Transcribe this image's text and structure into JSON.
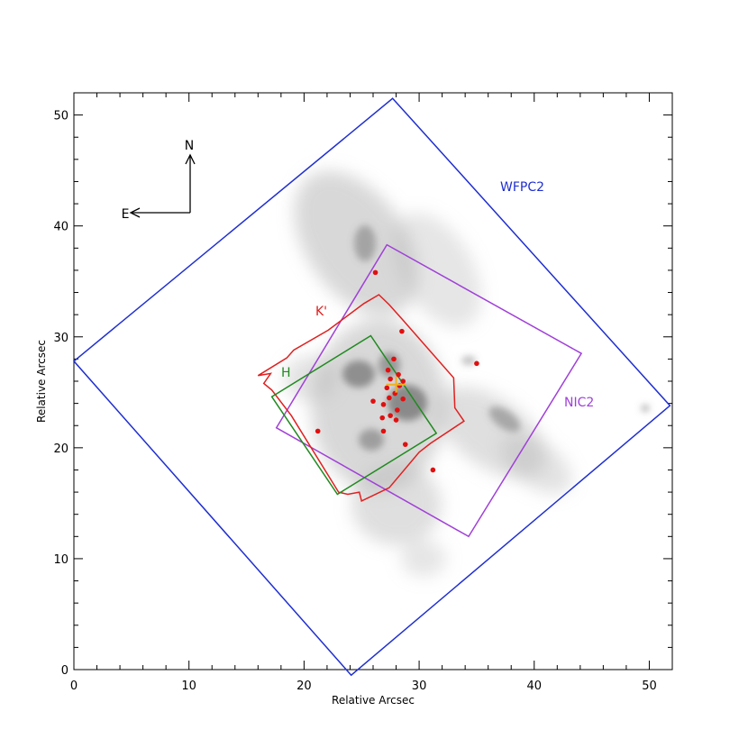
{
  "chart_data": {
    "type": "scatter",
    "xlabel": "Relative Arcsec",
    "ylabel": "Relative Arcsec",
    "xlim": [
      0,
      52
    ],
    "ylim": [
      0,
      52
    ],
    "xticks": [
      0,
      10,
      20,
      30,
      40,
      50
    ],
    "yticks": [
      0,
      10,
      20,
      30,
      40,
      50
    ],
    "compass": {
      "north": "N",
      "east": "E"
    },
    "footprints": [
      {
        "name": "WFPC2",
        "color": "#1f2fd0",
        "vertices": [
          [
            27.7,
            51.5
          ],
          [
            51.8,
            23.8
          ],
          [
            24.1,
            -0.5
          ],
          [
            0,
            27.8
          ]
        ]
      },
      {
        "name": "NIC2",
        "color": "#a040d8",
        "vertices": [
          [
            27.2,
            38.3
          ],
          [
            44.1,
            28.5
          ],
          [
            34.3,
            12.0
          ],
          [
            17.6,
            21.8
          ]
        ]
      },
      {
        "name": "K'",
        "color": "#e02020",
        "vertices": [
          [
            26.5,
            33.8
          ],
          [
            27.4,
            32.9
          ],
          [
            28.6,
            31.5
          ],
          [
            33.0,
            26.3
          ],
          [
            33.1,
            23.6
          ],
          [
            33.9,
            22.4
          ],
          [
            31.0,
            20.4
          ],
          [
            30.0,
            19.6
          ],
          [
            27.4,
            16.4
          ],
          [
            25.0,
            15.2
          ],
          [
            24.8,
            16.0
          ],
          [
            23.8,
            15.8
          ],
          [
            23.0,
            16.0
          ],
          [
            18.9,
            22.9
          ],
          [
            17.2,
            25.2
          ],
          [
            16.5,
            25.8
          ],
          [
            17.1,
            26.7
          ],
          [
            16.0,
            26.5
          ],
          [
            18.5,
            28.1
          ],
          [
            19.1,
            28.8
          ],
          [
            22.1,
            30.6
          ],
          [
            25.2,
            33.0
          ]
        ]
      },
      {
        "name": "H",
        "color": "#208a20",
        "vertices": [
          [
            25.8,
            30.1
          ],
          [
            31.5,
            21.3
          ],
          [
            22.9,
            15.8
          ],
          [
            17.2,
            24.6
          ]
        ]
      }
    ],
    "sources": [
      [
        26.2,
        35.8
      ],
      [
        28.5,
        30.5
      ],
      [
        35.0,
        27.6
      ],
      [
        27.8,
        28.0
      ],
      [
        27.3,
        27.0
      ],
      [
        28.2,
        26.6
      ],
      [
        27.5,
        26.2
      ],
      [
        28.6,
        26.0
      ],
      [
        27.2,
        25.4
      ],
      [
        28.3,
        25.6
      ],
      [
        27.9,
        24.9
      ],
      [
        27.4,
        24.5
      ],
      [
        28.6,
        24.4
      ],
      [
        26.0,
        24.2
      ],
      [
        26.9,
        23.9
      ],
      [
        28.1,
        23.4
      ],
      [
        27.5,
        22.9
      ],
      [
        26.8,
        22.7
      ],
      [
        28.0,
        22.5
      ],
      [
        21.2,
        21.5
      ],
      [
        26.9,
        21.5
      ],
      [
        28.8,
        20.3
      ],
      [
        31.2,
        18.0
      ]
    ],
    "center_marker": {
      "x": 28.0,
      "y": 25.7,
      "color": "#f0b020"
    }
  }
}
